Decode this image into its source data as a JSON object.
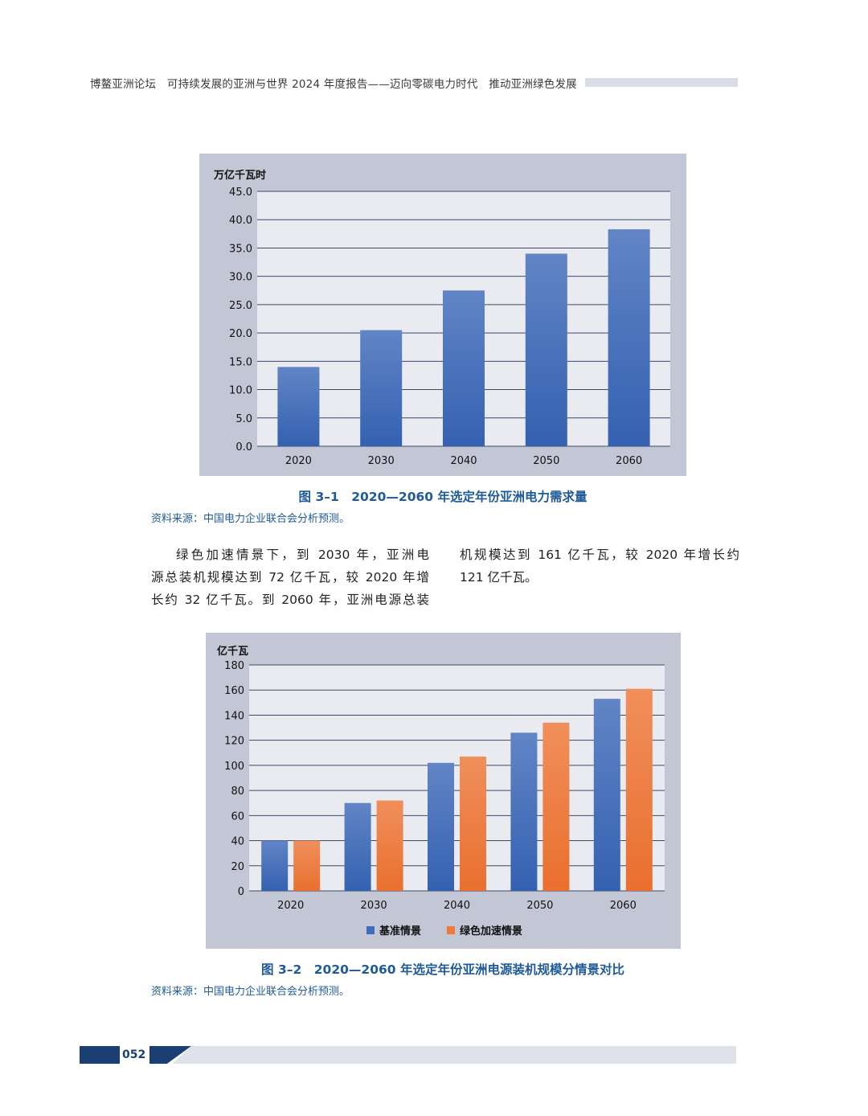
{
  "header": {
    "running_title": "博鳌亚洲论坛　可持续发展的亚洲与世界 2024 年度报告——迈向零碳电力时代　推动亚洲绿色发展"
  },
  "figure1": {
    "caption": "图 3–1　2020—2060 年选定年份亚洲电力需求量",
    "source": "资料来源：中国电力企业联合会分析预测。"
  },
  "figure2": {
    "caption": "图 3–2　2020—2060 年选定年份亚洲电源装机规模分情景对比",
    "source": "资料来源：中国电力企业联合会分析预测。"
  },
  "body": {
    "left_lines": [
      "绿色加速情景下，到 2030 年，亚洲电",
      "源总装机规模达到 72 亿千瓦，较 2020 年增",
      "长约 32 亿千瓦。到 2060 年，亚洲电源总装"
    ],
    "right_lines": [
      "机规模达到 161 亿千瓦，较 2020 年增长约",
      "121 亿千瓦。"
    ]
  },
  "footer": {
    "page_number": "052"
  },
  "colors": {
    "blue_bar": "#3f6dbb",
    "orange_bar": "#ec7a3d",
    "caption_blue": "#1f5a99",
    "chart_bg": "#c3c7d5",
    "plot_bg": "#e9ebf1"
  },
  "chart_data": [
    {
      "type": "bar",
      "title": "",
      "ylabel": "万亿千瓦时",
      "xlabel": "",
      "categories": [
        "2020",
        "2030",
        "2040",
        "2050",
        "2060"
      ],
      "values": [
        14.0,
        20.5,
        27.5,
        34.0,
        38.3
      ],
      "ylim": [
        0,
        45
      ],
      "yticks": [
        "0.0",
        "5.0",
        "10.0",
        "15.0",
        "20.0",
        "25.0",
        "30.0",
        "35.0",
        "40.0",
        "45.0"
      ],
      "grid": true
    },
    {
      "type": "bar",
      "title": "",
      "ylabel": "亿千瓦",
      "xlabel": "",
      "categories": [
        "2020",
        "2030",
        "2040",
        "2050",
        "2060"
      ],
      "series": [
        {
          "name": "基准情景",
          "values": [
            40,
            70,
            102,
            126,
            153
          ]
        },
        {
          "name": "绿色加速情景",
          "values": [
            40,
            72,
            107,
            134,
            161
          ]
        }
      ],
      "ylim": [
        0,
        180
      ],
      "yticks": [
        "0",
        "20",
        "40",
        "60",
        "80",
        "100",
        "120",
        "140",
        "160",
        "180"
      ],
      "grid": true,
      "legend": "bottom"
    }
  ]
}
